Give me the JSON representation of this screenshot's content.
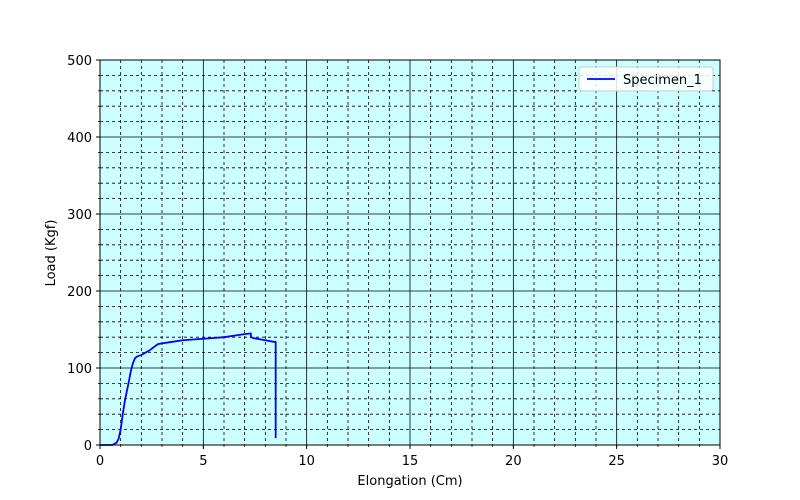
{
  "chart_data": {
    "type": "line",
    "xlabel": "Elongation (Cm)",
    "ylabel": "Load (Kgf)",
    "xlim": [
      0,
      30
    ],
    "ylim": [
      0,
      500
    ],
    "x_major_ticks": [
      0,
      5,
      10,
      15,
      20,
      25,
      30
    ],
    "y_major_ticks": [
      0,
      100,
      200,
      300,
      400,
      500
    ],
    "x_minor_step": 1,
    "y_minor_step": 20,
    "grid": true,
    "legend_position": "top-right",
    "plot_background": "#ccffff",
    "series": [
      {
        "name": "Specimen_1",
        "color": "#0000ff",
        "x": [
          0.0,
          0.3,
          0.6,
          0.8,
          0.9,
          1.0,
          1.1,
          1.2,
          1.3,
          1.4,
          1.5,
          1.6,
          1.7,
          1.8,
          1.9,
          2.0,
          2.2,
          2.4,
          2.6,
          2.8,
          3.0,
          3.5,
          4.0,
          5.0,
          6.0,
          6.5,
          7.0,
          7.3,
          7.3,
          7.4,
          8.0,
          8.4,
          8.5,
          8.5
        ],
        "y": [
          0,
          0,
          0,
          3,
          8,
          20,
          40,
          57,
          70,
          83,
          97,
          107,
          113,
          115,
          116,
          117,
          120,
          123,
          127,
          131,
          132,
          134,
          136,
          138,
          140,
          142,
          144,
          145,
          140,
          139,
          136,
          134,
          134,
          9
        ]
      }
    ]
  }
}
